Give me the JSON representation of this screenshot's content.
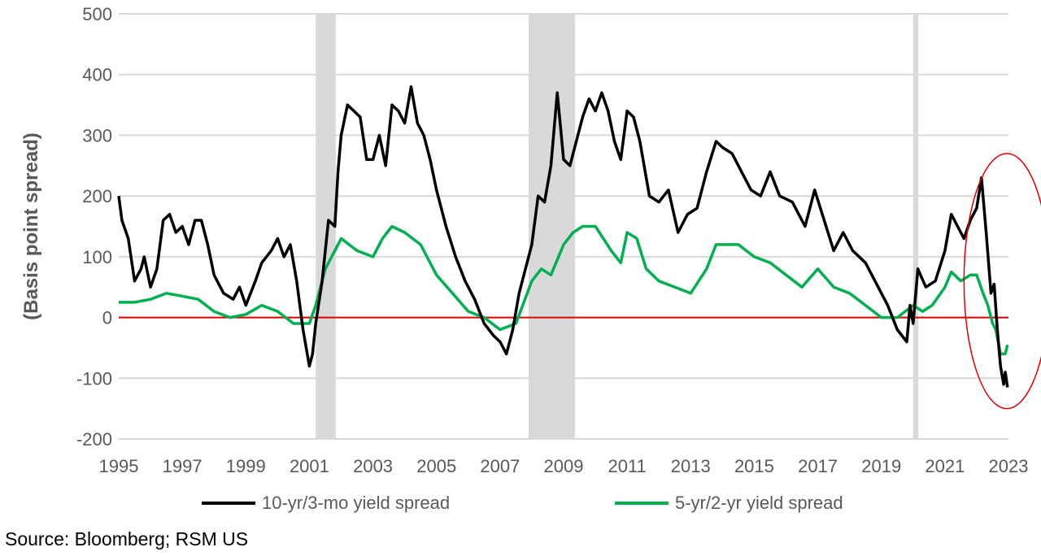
{
  "chart_data": {
    "type": "line",
    "title": "",
    "xlabel": "",
    "ylabel": "(Basis point spread)",
    "xlim": [
      1995,
      2023
    ],
    "ylim": [
      -200,
      500
    ],
    "x_ticks": [
      "1995",
      "1997",
      "1999",
      "2001",
      "2003",
      "2005",
      "2007",
      "2009",
      "2011",
      "2013",
      "2015",
      "2017",
      "2019",
      "2021",
      "2023"
    ],
    "y_ticks": [
      "500",
      "400",
      "300",
      "200",
      "100",
      "0",
      "-100",
      "-200"
    ],
    "grid": true,
    "legend_position": "bottom",
    "zero_line_color": "#e00000",
    "recession_shading": [
      [
        2001.2,
        2001.83
      ],
      [
        2007.9,
        2009.36
      ],
      [
        2020.0,
        2020.16
      ]
    ],
    "recession_color": "#d9d9d9",
    "highlight_ellipse": {
      "x_range": [
        2021.6,
        2024.3
      ],
      "y_range": [
        -150,
        270
      ],
      "color": "#e00000"
    },
    "series": [
      {
        "name": "10-yr/3-mo yield spread",
        "color": "#000000",
        "points": [
          [
            1995.0,
            200
          ],
          [
            1995.1,
            160
          ],
          [
            1995.3,
            130
          ],
          [
            1995.5,
            60
          ],
          [
            1995.7,
            80
          ],
          [
            1995.8,
            100
          ],
          [
            1996.0,
            50
          ],
          [
            1996.2,
            80
          ],
          [
            1996.4,
            160
          ],
          [
            1996.6,
            170
          ],
          [
            1996.8,
            140
          ],
          [
            1997.0,
            150
          ],
          [
            1997.2,
            120
          ],
          [
            1997.4,
            160
          ],
          [
            1997.6,
            160
          ],
          [
            1997.8,
            120
          ],
          [
            1998.0,
            70
          ],
          [
            1998.3,
            40
          ],
          [
            1998.6,
            30
          ],
          [
            1998.8,
            50
          ],
          [
            1999.0,
            20
          ],
          [
            1999.3,
            60
          ],
          [
            1999.5,
            90
          ],
          [
            1999.8,
            110
          ],
          [
            2000.0,
            130
          ],
          [
            2000.2,
            100
          ],
          [
            2000.4,
            120
          ],
          [
            2000.6,
            60
          ],
          [
            2000.8,
            -20
          ],
          [
            2000.9,
            -50
          ],
          [
            2001.0,
            -80
          ],
          [
            2001.1,
            -60
          ],
          [
            2001.2,
            -10
          ],
          [
            2001.4,
            60
          ],
          [
            2001.6,
            160
          ],
          [
            2001.8,
            150
          ],
          [
            2001.9,
            240
          ],
          [
            2002.0,
            300
          ],
          [
            2002.2,
            350
          ],
          [
            2002.4,
            340
          ],
          [
            2002.6,
            330
          ],
          [
            2002.8,
            260
          ],
          [
            2003.0,
            260
          ],
          [
            2003.2,
            300
          ],
          [
            2003.4,
            250
          ],
          [
            2003.6,
            350
          ],
          [
            2003.8,
            340
          ],
          [
            2004.0,
            320
          ],
          [
            2004.2,
            380
          ],
          [
            2004.4,
            320
          ],
          [
            2004.6,
            300
          ],
          [
            2004.8,
            260
          ],
          [
            2005.0,
            210
          ],
          [
            2005.3,
            150
          ],
          [
            2005.6,
            100
          ],
          [
            2005.9,
            60
          ],
          [
            2006.2,
            30
          ],
          [
            2006.5,
            -10
          ],
          [
            2006.8,
            -30
          ],
          [
            2007.0,
            -40
          ],
          [
            2007.2,
            -60
          ],
          [
            2007.4,
            -20
          ],
          [
            2007.6,
            40
          ],
          [
            2007.8,
            80
          ],
          [
            2008.0,
            120
          ],
          [
            2008.2,
            200
          ],
          [
            2008.4,
            190
          ],
          [
            2008.6,
            250
          ],
          [
            2008.8,
            370
          ],
          [
            2009.0,
            260
          ],
          [
            2009.2,
            250
          ],
          [
            2009.4,
            290
          ],
          [
            2009.6,
            330
          ],
          [
            2009.8,
            360
          ],
          [
            2010.0,
            340
          ],
          [
            2010.2,
            370
          ],
          [
            2010.4,
            340
          ],
          [
            2010.6,
            290
          ],
          [
            2010.8,
            260
          ],
          [
            2011.0,
            340
          ],
          [
            2011.2,
            330
          ],
          [
            2011.4,
            290
          ],
          [
            2011.7,
            200
          ],
          [
            2012.0,
            190
          ],
          [
            2012.3,
            210
          ],
          [
            2012.6,
            140
          ],
          [
            2012.9,
            170
          ],
          [
            2013.2,
            180
          ],
          [
            2013.5,
            240
          ],
          [
            2013.8,
            290
          ],
          [
            2014.0,
            280
          ],
          [
            2014.3,
            270
          ],
          [
            2014.6,
            240
          ],
          [
            2014.9,
            210
          ],
          [
            2015.2,
            200
          ],
          [
            2015.5,
            240
          ],
          [
            2015.8,
            200
          ],
          [
            2016.2,
            190
          ],
          [
            2016.6,
            150
          ],
          [
            2016.9,
            210
          ],
          [
            2017.2,
            160
          ],
          [
            2017.5,
            110
          ],
          [
            2017.8,
            140
          ],
          [
            2018.1,
            110
          ],
          [
            2018.5,
            90
          ],
          [
            2018.9,
            50
          ],
          [
            2019.2,
            20
          ],
          [
            2019.5,
            -20
          ],
          [
            2019.8,
            -40
          ],
          [
            2019.9,
            20
          ],
          [
            2020.0,
            -10
          ],
          [
            2020.15,
            80
          ],
          [
            2020.4,
            50
          ],
          [
            2020.7,
            60
          ],
          [
            2021.0,
            110
          ],
          [
            2021.2,
            170
          ],
          [
            2021.4,
            150
          ],
          [
            2021.6,
            130
          ],
          [
            2021.8,
            160
          ],
          [
            2022.0,
            180
          ],
          [
            2022.15,
            230
          ],
          [
            2022.3,
            140
          ],
          [
            2022.45,
            40
          ],
          [
            2022.55,
            55
          ],
          [
            2022.65,
            -20
          ],
          [
            2022.75,
            -80
          ],
          [
            2022.85,
            -110
          ],
          [
            2022.9,
            -90
          ],
          [
            2022.97,
            -115
          ]
        ]
      },
      {
        "name": "5-yr/2-yr yield spread",
        "color": "#00b050",
        "points": [
          [
            1995.0,
            25
          ],
          [
            1995.5,
            25
          ],
          [
            1996.0,
            30
          ],
          [
            1996.5,
            40
          ],
          [
            1997.0,
            35
          ],
          [
            1997.5,
            30
          ],
          [
            1998.0,
            10
          ],
          [
            1998.5,
            0
          ],
          [
            1999.0,
            5
          ],
          [
            1999.5,
            20
          ],
          [
            2000.0,
            10
          ],
          [
            2000.5,
            -10
          ],
          [
            2001.0,
            -10
          ],
          [
            2001.2,
            20
          ],
          [
            2001.5,
            80
          ],
          [
            2001.8,
            110
          ],
          [
            2002.0,
            130
          ],
          [
            2002.5,
            110
          ],
          [
            2003.0,
            100
          ],
          [
            2003.3,
            130
          ],
          [
            2003.6,
            150
          ],
          [
            2004.0,
            140
          ],
          [
            2004.5,
            120
          ],
          [
            2005.0,
            70
          ],
          [
            2005.5,
            40
          ],
          [
            2006.0,
            10
          ],
          [
            2006.5,
            0
          ],
          [
            2007.0,
            -20
          ],
          [
            2007.5,
            -10
          ],
          [
            2008.0,
            60
          ],
          [
            2008.3,
            80
          ],
          [
            2008.6,
            70
          ],
          [
            2009.0,
            120
          ],
          [
            2009.3,
            140
          ],
          [
            2009.6,
            150
          ],
          [
            2010.0,
            150
          ],
          [
            2010.5,
            110
          ],
          [
            2010.8,
            90
          ],
          [
            2011.0,
            140
          ],
          [
            2011.3,
            130
          ],
          [
            2011.6,
            80
          ],
          [
            2012.0,
            60
          ],
          [
            2012.5,
            50
          ],
          [
            2013.0,
            40
          ],
          [
            2013.5,
            80
          ],
          [
            2013.8,
            120
          ],
          [
            2014.0,
            120
          ],
          [
            2014.5,
            120
          ],
          [
            2015.0,
            100
          ],
          [
            2015.5,
            90
          ],
          [
            2016.0,
            70
          ],
          [
            2016.5,
            50
          ],
          [
            2017.0,
            80
          ],
          [
            2017.5,
            50
          ],
          [
            2018.0,
            40
          ],
          [
            2018.5,
            20
          ],
          [
            2019.0,
            0
          ],
          [
            2019.5,
            0
          ],
          [
            2020.0,
            20
          ],
          [
            2020.3,
            10
          ],
          [
            2020.6,
            20
          ],
          [
            2021.0,
            50
          ],
          [
            2021.2,
            75
          ],
          [
            2021.5,
            60
          ],
          [
            2021.8,
            70
          ],
          [
            2022.0,
            70
          ],
          [
            2022.2,
            40
          ],
          [
            2022.35,
            20
          ],
          [
            2022.5,
            -10
          ],
          [
            2022.6,
            -20
          ],
          [
            2022.75,
            -60
          ],
          [
            2022.9,
            -60
          ],
          [
            2022.97,
            -45
          ]
        ]
      }
    ]
  },
  "source": "Source: Bloomberg; RSM US"
}
